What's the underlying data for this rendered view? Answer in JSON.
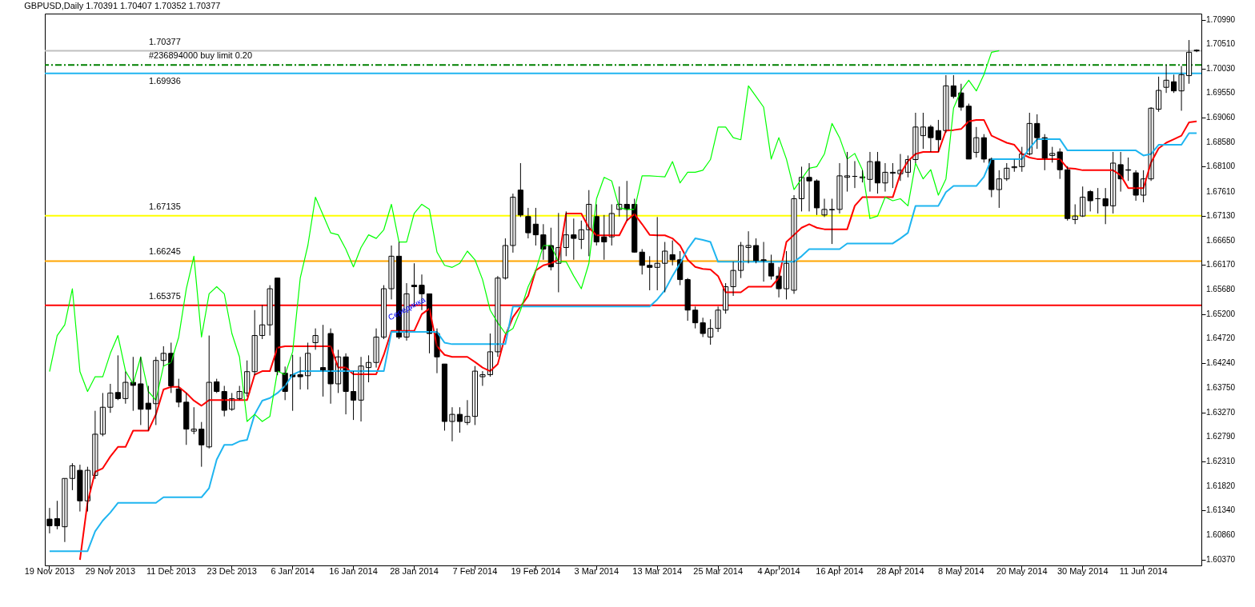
{
  "chart_data": {
    "type": "candlestick",
    "title": "GBPUSD,Daily  1.70391 1.70407 1.70352 1.70377",
    "categories": [
      "19 Nov 2013",
      null,
      null,
      null,
      null,
      null,
      null,
      null,
      "29 Nov 2013",
      null,
      null,
      null,
      null,
      null,
      null,
      null,
      "11 Dec 2013",
      null,
      null,
      null,
      null,
      null,
      null,
      null,
      "23 Dec 2013",
      null,
      null,
      null,
      null,
      null,
      null,
      null,
      "6 Jan 2014",
      null,
      null,
      null,
      null,
      null,
      null,
      null,
      "16 Jan 2014",
      null,
      null,
      null,
      null,
      null,
      null,
      null,
      "28 Jan 2014",
      null,
      null,
      null,
      null,
      null,
      null,
      null,
      "7 Feb 2014",
      null,
      null,
      null,
      null,
      null,
      null,
      null,
      "19 Feb 2014",
      null,
      null,
      null,
      null,
      null,
      null,
      null,
      "3 Mar 2014",
      null,
      null,
      null,
      null,
      null,
      null,
      null,
      "13 Mar 2014",
      null,
      null,
      null,
      null,
      null,
      null,
      null,
      "25 Mar 2014",
      null,
      null,
      null,
      null,
      null,
      null,
      null,
      "4 Apr 2014",
      null,
      null,
      null,
      null,
      null,
      null,
      null,
      "16 Apr 2014",
      null,
      null,
      null,
      null,
      null,
      null,
      null,
      "28 Apr 2014",
      null,
      null,
      null,
      null,
      null,
      null,
      null,
      "8 May 2014",
      null,
      null,
      null,
      null,
      null,
      null,
      null,
      "20 May 2014",
      null,
      null,
      null,
      null,
      null,
      null,
      null,
      "30 May 2014",
      null,
      null,
      null,
      null,
      null,
      null,
      null,
      "11 Jun 2014",
      null,
      null,
      null,
      null,
      null,
      null,
      null
    ],
    "ohlc": [
      [
        1.6117,
        1.6139,
        1.6089,
        1.6104
      ],
      [
        1.6118,
        1.6153,
        1.6097,
        1.6104
      ],
      [
        1.6102,
        1.6197,
        1.6072,
        1.6197
      ],
      [
        1.6197,
        1.6227,
        1.6174,
        1.6222
      ],
      [
        1.6213,
        1.6224,
        1.6132,
        1.6153
      ],
      [
        1.6153,
        1.622,
        1.6132,
        1.6213
      ],
      [
        1.6203,
        1.633,
        1.6196,
        1.6284
      ],
      [
        1.6284,
        1.6365,
        1.628,
        1.6337
      ],
      [
        1.6337,
        1.6383,
        1.6326,
        1.6365
      ],
      [
        1.6366,
        1.6439,
        1.6351,
        1.6354
      ],
      [
        1.6354,
        1.6407,
        1.6344,
        1.6386
      ],
      [
        1.6386,
        1.6436,
        1.633,
        1.638
      ],
      [
        1.6383,
        1.6436,
        1.6302,
        1.6333
      ],
      [
        1.6345,
        1.6379,
        1.6291,
        1.6333
      ],
      [
        1.6344,
        1.6436,
        1.6302,
        1.6429
      ],
      [
        1.6429,
        1.6457,
        1.6418,
        1.6443
      ],
      [
        1.6443,
        1.6464,
        1.6365,
        1.6379
      ],
      [
        1.6373,
        1.6393,
        1.6337,
        1.6347
      ],
      [
        1.6347,
        1.6365,
        1.6263,
        1.6294
      ],
      [
        1.629,
        1.6337,
        1.6284,
        1.6294
      ],
      [
        1.6294,
        1.6308,
        1.622,
        1.6263
      ],
      [
        1.6259,
        1.6478,
        1.6256,
        1.6386
      ],
      [
        1.6387,
        1.6393,
        1.6365,
        1.6368
      ],
      [
        1.6368,
        1.6379,
        1.6319,
        1.6331
      ],
      [
        1.6333,
        1.6365,
        1.633,
        1.6354
      ],
      [
        1.6354,
        1.6379,
        1.6351,
        1.6368
      ],
      [
        1.6365,
        1.6429,
        1.6358,
        1.6407
      ],
      [
        1.6407,
        1.6528,
        1.64,
        1.6478
      ],
      [
        1.6478,
        1.6538,
        1.6471,
        1.6499
      ],
      [
        1.6499,
        1.6577,
        1.6478,
        1.657
      ],
      [
        1.6591,
        1.6591,
        1.64,
        1.6407
      ],
      [
        1.6404,
        1.6417,
        1.6351,
        1.6368
      ],
      [
        1.6401,
        1.644,
        1.633,
        1.6397
      ],
      [
        1.6401,
        1.6436,
        1.6372,
        1.6397
      ],
      [
        1.6399,
        1.6464,
        1.6372,
        1.6443
      ],
      [
        1.6464,
        1.6492,
        1.645,
        1.6478
      ],
      [
        1.6415,
        1.6499,
        1.6358,
        1.6408
      ],
      [
        1.6482,
        1.6492,
        1.6344,
        1.6383
      ],
      [
        1.6383,
        1.645,
        1.6365,
        1.6436
      ],
      [
        1.6436,
        1.6443,
        1.6323,
        1.6368
      ],
      [
        1.6368,
        1.6408,
        1.6312,
        1.6351
      ],
      [
        1.6351,
        1.6436,
        1.6309,
        1.6418
      ],
      [
        1.6415,
        1.6439,
        1.6386,
        1.6425
      ],
      [
        1.6425,
        1.6492,
        1.6415,
        1.6475
      ],
      [
        1.6475,
        1.6577,
        1.6471,
        1.657
      ],
      [
        1.657,
        1.6655,
        1.6549,
        1.6634
      ],
      [
        1.6634,
        1.6662,
        1.6471,
        1.6475
      ],
      [
        1.6475,
        1.6581,
        1.6468,
        1.656
      ],
      [
        1.6577,
        1.662,
        1.6535,
        1.6574
      ],
      [
        1.6577,
        1.6598,
        1.6528,
        1.656
      ],
      [
        1.656,
        1.656,
        1.6443,
        1.6482
      ],
      [
        1.6482,
        1.6492,
        1.6404,
        1.6436
      ],
      [
        1.6422,
        1.6422,
        1.6291,
        1.6309
      ],
      [
        1.6309,
        1.6337,
        1.627,
        1.6323
      ],
      [
        1.6323,
        1.6337,
        1.6287,
        1.6309
      ],
      [
        1.6307,
        1.6351,
        1.6302,
        1.6319
      ],
      [
        1.6319,
        1.6418,
        1.6302,
        1.6408
      ],
      [
        1.6397,
        1.6408,
        1.6379,
        1.6401
      ],
      [
        1.6401,
        1.6482,
        1.6397,
        1.6446
      ],
      [
        1.6446,
        1.6595,
        1.6436,
        1.6591
      ],
      [
        1.6591,
        1.6669,
        1.6588,
        1.6655
      ],
      [
        1.6655,
        1.6757,
        1.6641,
        1.675
      ],
      [
        1.6764,
        1.6817,
        1.6711,
        1.6715
      ],
      [
        1.6712,
        1.6729,
        1.6669,
        1.668
      ],
      [
        1.6697,
        1.6729,
        1.6655,
        1.6676
      ],
      [
        1.6676,
        1.6697,
        1.6627,
        1.6648
      ],
      [
        1.6655,
        1.669,
        1.6606,
        1.6613
      ],
      [
        1.662,
        1.6719,
        1.6563,
        1.6651
      ],
      [
        1.6651,
        1.6722,
        1.6634,
        1.6676
      ],
      [
        1.6676,
        1.6708,
        1.6627,
        1.6669
      ],
      [
        1.6667,
        1.6704,
        1.6648,
        1.6686
      ],
      [
        1.6686,
        1.6764,
        1.6634,
        1.6736
      ],
      [
        1.6712,
        1.6736,
        1.6655,
        1.6662
      ],
      [
        1.6672,
        1.6715,
        1.6627,
        1.6662
      ],
      [
        1.6672,
        1.6736,
        1.6655,
        1.6718
      ],
      [
        1.6726,
        1.6771,
        1.6712,
        1.6736
      ],
      [
        1.6736,
        1.6782,
        1.6704,
        1.6726
      ],
      [
        1.6736,
        1.6747,
        1.6641,
        1.6642
      ],
      [
        1.6642,
        1.6648,
        1.6598,
        1.6616
      ],
      [
        1.6616,
        1.6634,
        1.6567,
        1.6612
      ],
      [
        1.6612,
        1.6711,
        1.6567,
        1.662
      ],
      [
        1.662,
        1.6662,
        1.6563,
        1.6644
      ],
      [
        1.6637,
        1.6665,
        1.6616,
        1.6627
      ],
      [
        1.6627,
        1.6644,
        1.6577,
        1.6588
      ],
      [
        1.6588,
        1.6591,
        1.6507,
        1.6528
      ],
      [
        1.6528,
        1.6535,
        1.6492,
        1.6503
      ],
      [
        1.6503,
        1.6513,
        1.6475,
        1.6482
      ],
      [
        1.6475,
        1.651,
        1.646,
        1.6492
      ],
      [
        1.6492,
        1.6535,
        1.6485,
        1.6528
      ],
      [
        1.6528,
        1.6581,
        1.6521,
        1.6574
      ],
      [
        1.6574,
        1.6623,
        1.6556,
        1.6606
      ],
      [
        1.6606,
        1.6662,
        1.6591,
        1.6655
      ],
      [
        1.6651,
        1.6683,
        1.662,
        1.6655
      ],
      [
        1.6655,
        1.6669,
        1.662,
        1.6623
      ],
      [
        1.6627,
        1.6662,
        1.6584,
        1.6623
      ],
      [
        1.662,
        1.6637,
        1.6588,
        1.6595
      ],
      [
        1.6595,
        1.6613,
        1.6553,
        1.657
      ],
      [
        1.657,
        1.6644,
        1.6549,
        1.662
      ],
      [
        1.6567,
        1.6754,
        1.656,
        1.6747
      ],
      [
        1.6747,
        1.681,
        1.6722,
        1.6789
      ],
      [
        1.6789,
        1.6817,
        1.6722,
        1.6782
      ],
      [
        1.6782,
        1.6785,
        1.6715,
        1.6729
      ],
      [
        1.6715,
        1.6747,
        1.6711,
        1.6726
      ],
      [
        1.6725,
        1.6747,
        1.6658,
        1.6726
      ],
      [
        1.6726,
        1.6817,
        1.6718,
        1.6792
      ],
      [
        1.6789,
        1.6839,
        1.6761,
        1.6792
      ],
      [
        1.6791,
        1.6821,
        1.6768,
        1.6791
      ],
      [
        1.6788,
        1.6803,
        1.6779,
        1.679
      ],
      [
        1.6785,
        1.6839,
        1.6761,
        1.682
      ],
      [
        1.682,
        1.6839,
        1.6757,
        1.6778
      ],
      [
        1.6778,
        1.6817,
        1.6761,
        1.6799
      ],
      [
        1.6797,
        1.6817,
        1.6768,
        1.6799
      ],
      [
        1.6796,
        1.6835,
        1.6782,
        1.6803
      ],
      [
        1.6799,
        1.6832,
        1.6789,
        1.6824
      ],
      [
        1.6824,
        1.6916,
        1.6817,
        1.6888
      ],
      [
        1.6871,
        1.6916,
        1.6845,
        1.6888
      ],
      [
        1.6888,
        1.6892,
        1.6839,
        1.6867
      ],
      [
        1.6881,
        1.6902,
        1.6839,
        1.6863
      ],
      [
        1.6881,
        1.699,
        1.6877,
        1.6969
      ],
      [
        1.6969,
        1.699,
        1.6944,
        1.6948
      ],
      [
        1.6955,
        1.6973,
        1.692,
        1.6927
      ],
      [
        1.6929,
        1.6934,
        1.6825,
        1.6825
      ],
      [
        1.6838,
        1.6888,
        1.6828,
        1.6867
      ],
      [
        1.6867,
        1.6874,
        1.6818,
        1.6825
      ],
      [
        1.6825,
        1.6828,
        1.675,
        1.6765
      ],
      [
        1.6765,
        1.6803,
        1.6729,
        1.6786
      ],
      [
        1.6786,
        1.6817,
        1.6782,
        1.6807
      ],
      [
        1.6808,
        1.6824,
        1.68,
        1.681
      ],
      [
        1.681,
        1.6849,
        1.68,
        1.6835
      ],
      [
        1.6835,
        1.6916,
        1.6832,
        1.6895
      ],
      [
        1.6895,
        1.6913,
        1.6845,
        1.6867
      ],
      [
        1.6867,
        1.6874,
        1.6803,
        1.6825
      ],
      [
        1.6832,
        1.6849,
        1.6818,
        1.6836
      ],
      [
        1.6839,
        1.6846,
        1.6786,
        1.6804
      ],
      [
        1.6804,
        1.6811,
        1.6704,
        1.6708
      ],
      [
        1.6706,
        1.6736,
        1.6697,
        1.6713
      ],
      [
        1.6713,
        1.6771,
        1.6711,
        1.675
      ],
      [
        1.6761,
        1.6764,
        1.6722,
        1.6743
      ],
      [
        1.6747,
        1.6768,
        1.6718,
        1.6747
      ],
      [
        1.6747,
        1.6768,
        1.6697,
        1.6733
      ],
      [
        1.6733,
        1.6839,
        1.6718,
        1.6817
      ],
      [
        1.6814,
        1.6839,
        1.6761,
        1.6786
      ],
      [
        1.6803,
        1.6828,
        1.6782,
        1.6804
      ],
      [
        1.6798,
        1.6803,
        1.6743,
        1.6754
      ],
      [
        1.6754,
        1.6803,
        1.674,
        1.6786
      ],
      [
        1.6786,
        1.6927,
        1.6782,
        1.6925
      ],
      [
        1.6923,
        1.6987,
        1.6918,
        1.696
      ],
      [
        1.6966,
        1.701,
        1.6955,
        1.698
      ],
      [
        1.6977,
        1.6991,
        1.6955,
        1.6959
      ],
      [
        1.6959,
        1.7008,
        1.692,
        1.6991
      ],
      [
        1.6989,
        1.7059,
        1.6973,
        1.7035
      ],
      [
        1.70391,
        1.70407,
        1.70352,
        1.70377
      ]
    ],
    "series": [
      {
        "type": "line",
        "color": "#ff0000",
        "values": [
          null,
          null,
          null,
          null,
          1.6037,
          1.615,
          1.621,
          1.6217,
          1.624,
          1.6259,
          1.6259,
          1.6291,
          1.6291,
          1.6291,
          1.6323,
          1.6372,
          1.6377,
          1.6377,
          1.6365,
          1.635,
          1.634,
          1.6351,
          1.6351,
          1.6351,
          1.6351,
          1.6351,
          1.6351,
          1.6401,
          1.6408,
          1.6408,
          1.6454,
          1.6457,
          1.6457,
          1.6457,
          1.6457,
          1.6457,
          1.6457,
          1.6457,
          1.6415,
          1.6415,
          1.6402,
          1.6402,
          1.6402,
          1.6402,
          1.644,
          1.6487,
          1.6487,
          1.6487,
          1.6487,
          1.652,
          1.6531,
          1.6457,
          1.644,
          1.6436,
          1.6436,
          1.6436,
          1.6426,
          1.6415,
          1.6408,
          1.6422,
          1.6478,
          1.6514,
          1.6535,
          1.6556,
          1.6606,
          1.6616,
          1.662,
          1.6627,
          1.6718,
          1.6718,
          1.6718,
          1.669,
          1.6675,
          1.6675,
          1.6675,
          1.6675,
          1.6704,
          1.6717,
          1.6697,
          1.6676,
          1.6675,
          1.6675,
          1.6669,
          1.6655,
          1.6627,
          1.6613,
          1.6609,
          1.6608,
          1.6595,
          1.6563,
          1.6563,
          1.6563,
          1.6574,
          1.6574,
          1.6574,
          1.6574,
          1.6591,
          1.6662,
          1.6676,
          1.669,
          1.6697,
          1.669,
          1.6687,
          1.6687,
          1.6687,
          1.6687,
          1.6733,
          1.675,
          1.675,
          1.675,
          1.675,
          1.675,
          1.6796,
          1.6821,
          1.6835,
          1.6839,
          1.6839,
          1.6839,
          1.6881,
          1.6882,
          1.6884,
          1.6899,
          1.6902,
          1.6902,
          1.6871,
          1.6864,
          1.6857,
          1.6853,
          1.6835,
          1.6828,
          1.6825,
          1.6825,
          1.6825,
          1.6825,
          1.6807,
          1.6806,
          1.6803,
          1.6803,
          1.6803,
          1.6803,
          1.6803,
          1.6793,
          1.6768,
          1.6768,
          1.6768,
          1.6818,
          1.6846,
          1.6857,
          1.6864,
          1.6871,
          1.6897,
          1.6899
        ]
      },
      {
        "type": "line",
        "color": "#1fb5f0",
        "values": [
          1.6054,
          1.6054,
          1.6054,
          1.6054,
          1.6054,
          1.6054,
          1.6093,
          1.6114,
          1.613,
          1.6149,
          1.6149,
          1.6149,
          1.6149,
          1.6149,
          1.6149,
          1.616,
          1.616,
          1.616,
          1.616,
          1.616,
          1.616,
          1.6178,
          1.6234,
          1.6263,
          1.6263,
          1.627,
          1.6273,
          1.6323,
          1.635,
          1.6355,
          1.6365,
          1.6379,
          1.6401,
          1.6408,
          1.6408,
          1.6408,
          1.6408,
          1.6408,
          1.6408,
          1.6408,
          1.6408,
          1.6408,
          1.6408,
          1.6408,
          1.6408,
          1.6485,
          1.6485,
          1.6485,
          1.6485,
          1.6485,
          1.6485,
          1.6485,
          1.6464,
          1.6461,
          1.6461,
          1.6461,
          1.6461,
          1.6461,
          1.6461,
          1.6461,
          1.6461,
          1.6535,
          1.6535,
          1.6535,
          1.6535,
          1.6535,
          1.6535,
          1.6535,
          1.6535,
          1.6535,
          1.6535,
          1.6535,
          1.6535,
          1.6535,
          1.6535,
          1.6535,
          1.6535,
          1.6535,
          1.6535,
          1.6535,
          1.6549,
          1.6567,
          1.6595,
          1.662,
          1.6648,
          1.6669,
          1.6666,
          1.6662,
          1.6623,
          1.6623,
          1.6623,
          1.6623,
          1.6623,
          1.6623,
          1.6623,
          1.6623,
          1.6623,
          1.6623,
          1.6623,
          1.6634,
          1.6648,
          1.6648,
          1.6648,
          1.6648,
          1.6648,
          1.6659,
          1.6659,
          1.6659,
          1.6659,
          1.6659,
          1.6659,
          1.6659,
          1.6669,
          1.668,
          1.6733,
          1.6733,
          1.6733,
          1.6733,
          1.676,
          1.6772,
          1.6772,
          1.6772,
          1.6772,
          1.679,
          1.6825,
          1.6825,
          1.6825,
          1.6825,
          1.6825,
          1.6846,
          1.6864,
          1.6864,
          1.6864,
          1.6864,
          1.6842,
          1.6842,
          1.6842,
          1.6842,
          1.6842,
          1.6842,
          1.6842,
          1.6842,
          1.6842,
          1.6842,
          1.6832,
          1.6835,
          1.6853,
          1.6853,
          1.6853,
          1.6853,
          1.6876,
          1.6876
        ]
      },
      {
        "type": "line",
        "color": "#00ff00",
        "values": [
          1.6407,
          1.6478,
          1.6499,
          1.657,
          1.6407,
          1.6368,
          1.6397,
          1.6397,
          1.6443,
          1.6478,
          1.6408,
          1.6383,
          1.6436,
          1.6368,
          1.6351,
          1.6418,
          1.6425,
          1.6475,
          1.657,
          1.6634,
          1.6475,
          1.656,
          1.6574,
          1.656,
          1.6482,
          1.6436,
          1.6309,
          1.6323,
          1.6309,
          1.6319,
          1.6408,
          1.6401,
          1.6446,
          1.6591,
          1.6655,
          1.675,
          1.6715,
          1.668,
          1.6676,
          1.6648,
          1.6613,
          1.6651,
          1.6676,
          1.6669,
          1.6686,
          1.6736,
          1.6662,
          1.6662,
          1.6718,
          1.6736,
          1.6726,
          1.6642,
          1.6616,
          1.6612,
          1.662,
          1.6644,
          1.6627,
          1.6588,
          1.6528,
          1.6503,
          1.6482,
          1.6492,
          1.6528,
          1.6574,
          1.6606,
          1.6655,
          1.6655,
          1.6623,
          1.6623,
          1.6595,
          1.657,
          1.662,
          1.6747,
          1.6789,
          1.6782,
          1.6729,
          1.6726,
          1.6726,
          1.6792,
          1.6792,
          1.6791,
          1.679,
          1.682,
          1.6778,
          1.6799,
          1.6799,
          1.6803,
          1.6824,
          1.6888,
          1.6888,
          1.6867,
          1.6863,
          1.6969,
          1.6948,
          1.6927,
          1.6825,
          1.6867,
          1.6825,
          1.6765,
          1.6786,
          1.6807,
          1.681,
          1.6835,
          1.6895,
          1.6867,
          1.6825,
          1.6836,
          1.6804,
          1.6708,
          1.6713,
          1.675,
          1.6743,
          1.6747,
          1.6733,
          1.6817,
          1.6786,
          1.6804,
          1.6754,
          1.6786,
          1.6925,
          1.696,
          1.698,
          1.6959,
          1.6991,
          1.7035,
          1.7038,
          null,
          null,
          null,
          null,
          null,
          null,
          null,
          null,
          null,
          null,
          null,
          null,
          null,
          null,
          null,
          null,
          null,
          null,
          null,
          null,
          null,
          null,
          null,
          null,
          null,
          null
        ]
      }
    ],
    "ylim": [
      1.6026,
      1.7111
    ],
    "yticks": [
      {
        "value": 1.7099,
        "label": "1.70990"
      },
      {
        "value": 1.7051,
        "label": "1.70510"
      },
      {
        "value": 1.7003,
        "label": "1.70030"
      },
      {
        "value": 1.6955,
        "label": "1.69550"
      },
      {
        "value": 1.6906,
        "label": "1.69060"
      },
      {
        "value": 1.6858,
        "label": "1.68580"
      },
      {
        "value": 1.681,
        "label": "1.68100"
      },
      {
        "value": 1.6761,
        "label": "1.67610"
      },
      {
        "value": 1.6713,
        "label": "1.67130"
      },
      {
        "value": 1.6665,
        "label": "1.66650"
      },
      {
        "value": 1.6617,
        "label": "1.66170"
      },
      {
        "value": 1.6568,
        "label": "1.65680"
      },
      {
        "value": 1.652,
        "label": "1.65200"
      },
      {
        "value": 1.6472,
        "label": "1.64720"
      },
      {
        "value": 1.6424,
        "label": "1.64240"
      },
      {
        "value": 1.6375,
        "label": "1.63750"
      },
      {
        "value": 1.6327,
        "label": "1.63270"
      },
      {
        "value": 1.6279,
        "label": "1.62790"
      },
      {
        "value": 1.6231,
        "label": "1.62310"
      },
      {
        "value": 1.6182,
        "label": "1.61820"
      },
      {
        "value": 1.6134,
        "label": "1.61340"
      },
      {
        "value": 1.6086,
        "label": "1.60860"
      },
      {
        "value": 1.6037,
        "label": "1.60370"
      }
    ],
    "ref_lines": [
      {
        "axis": "y",
        "value": 1.70377,
        "label": "1.70377",
        "color": "#c0c0c0"
      },
      {
        "axis": "y",
        "value": 1.701,
        "label": "#236894000 buy limit 0.20",
        "color": "#008000",
        "line_style": "dashed"
      },
      {
        "axis": "y",
        "value": 1.69936,
        "label": "1.69936",
        "color": "#1fb5f0"
      },
      {
        "axis": "y",
        "value": 1.67135,
        "label": "1.67135",
        "color": "#ffff00"
      },
      {
        "axis": "y",
        "value": 1.66245,
        "label": "1.66245",
        "color": "#ffa500"
      },
      {
        "axis": "y",
        "value": 1.65375,
        "label": "1.65375",
        "color": "#ff0000"
      }
    ],
    "annotations": [
      "Серединка"
    ]
  }
}
